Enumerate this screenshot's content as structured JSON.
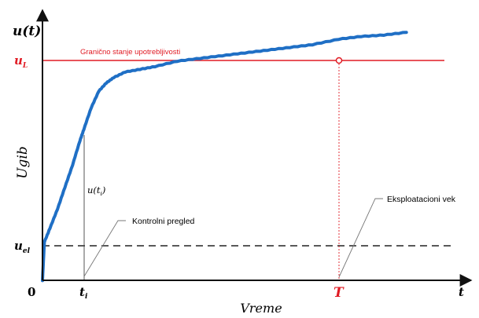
{
  "y_axis": {
    "title": "u(t)",
    "rotated_label": "Ugib"
  },
  "x_axis": {
    "title": "t",
    "rotated_label": "Vreme"
  },
  "origin_label": "0",
  "limit": {
    "symbol": "u",
    "subscript": "L",
    "text": "Granično stanje upotrebljivosti",
    "color": "#e01b24"
  },
  "elastic": {
    "symbol": "u",
    "subscript": "el"
  },
  "inspection": {
    "time_symbol": "t",
    "time_subscript": "i",
    "value_symbol": "u(t",
    "value_subscript": "i",
    "value_close": ")",
    "callout": "Kontrolni pregled"
  },
  "service_life": {
    "symbol": "T",
    "callout": "Eksploatacioni vek",
    "color": "#e01b24"
  },
  "curve_color": "#1f6fc5",
  "chart_data": {
    "type": "line",
    "title": "",
    "xlabel": "Vreme",
    "ylabel": "Ugib",
    "xlim": [
      0,
      100
    ],
    "ylim": [
      0,
      100
    ],
    "reference_lines": [
      {
        "name": "u_L",
        "y": 88,
        "style": "solid"
      },
      {
        "name": "u_el",
        "y": 17,
        "style": "dashed"
      }
    ],
    "markers": [
      {
        "name": "t_i",
        "x": 11
      },
      {
        "name": "T",
        "x": 79
      }
    ],
    "series": [
      {
        "values": [
          [
            0,
            0
          ],
          [
            0.5,
            14
          ],
          [
            2,
            19
          ],
          [
            4,
            26
          ],
          [
            6,
            34
          ],
          [
            8,
            42
          ],
          [
            10,
            51
          ],
          [
            11,
            55
          ],
          [
            13,
            63
          ],
          [
            15,
            69
          ],
          [
            17,
            72
          ],
          [
            19,
            74
          ],
          [
            22,
            76
          ],
          [
            26,
            77
          ],
          [
            30,
            78
          ],
          [
            36,
            80
          ],
          [
            42,
            81
          ],
          [
            48,
            82
          ],
          [
            54,
            83
          ],
          [
            60,
            84
          ],
          [
            66,
            85
          ],
          [
            72,
            86
          ],
          [
            79,
            88
          ],
          [
            85,
            89
          ],
          [
            91,
            89.5
          ],
          [
            97,
            90.5
          ]
        ]
      }
    ]
  }
}
